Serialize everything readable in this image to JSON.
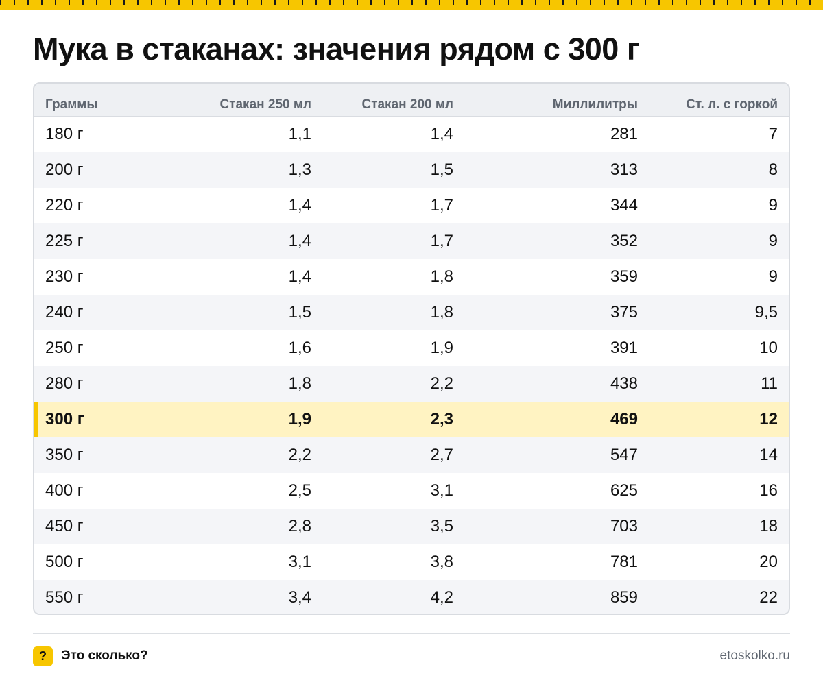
{
  "title": "Мука в стаканах: значения рядом с 300 г",
  "colors": {
    "accent": "#f7c600",
    "highlight_row": "#fff3c2",
    "header_bg": "#eef0f3",
    "stripe_bg": "#f4f5f8"
  },
  "table": {
    "columns": [
      "Граммы",
      "Стакан 250 мл",
      "Стакан 200 мл",
      "Миллилитры",
      "Ст. л. с горкой"
    ],
    "highlighted_row": "300 г",
    "rows": [
      [
        "180 г",
        "1,1",
        "1,4",
        "281",
        "7"
      ],
      [
        "200 г",
        "1,3",
        "1,5",
        "313",
        "8"
      ],
      [
        "220 г",
        "1,4",
        "1,7",
        "344",
        "9"
      ],
      [
        "225 г",
        "1,4",
        "1,7",
        "352",
        "9"
      ],
      [
        "230 г",
        "1,4",
        "1,8",
        "359",
        "9"
      ],
      [
        "240 г",
        "1,5",
        "1,8",
        "375",
        "9,5"
      ],
      [
        "250 г",
        "1,6",
        "1,9",
        "391",
        "10"
      ],
      [
        "280 г",
        "1,8",
        "2,2",
        "438",
        "11"
      ],
      [
        "300 г",
        "1,9",
        "2,3",
        "469",
        "12"
      ],
      [
        "350 г",
        "2,2",
        "2,7",
        "547",
        "14"
      ],
      [
        "400 г",
        "2,5",
        "3,1",
        "625",
        "16"
      ],
      [
        "450 г",
        "2,8",
        "3,5",
        "703",
        "18"
      ],
      [
        "500 г",
        "3,1",
        "3,8",
        "781",
        "20"
      ],
      [
        "550 г",
        "3,4",
        "4,2",
        "859",
        "22"
      ]
    ]
  },
  "footer": {
    "badge": "?",
    "brand": "Это сколько?",
    "site": "etoskolko.ru"
  }
}
